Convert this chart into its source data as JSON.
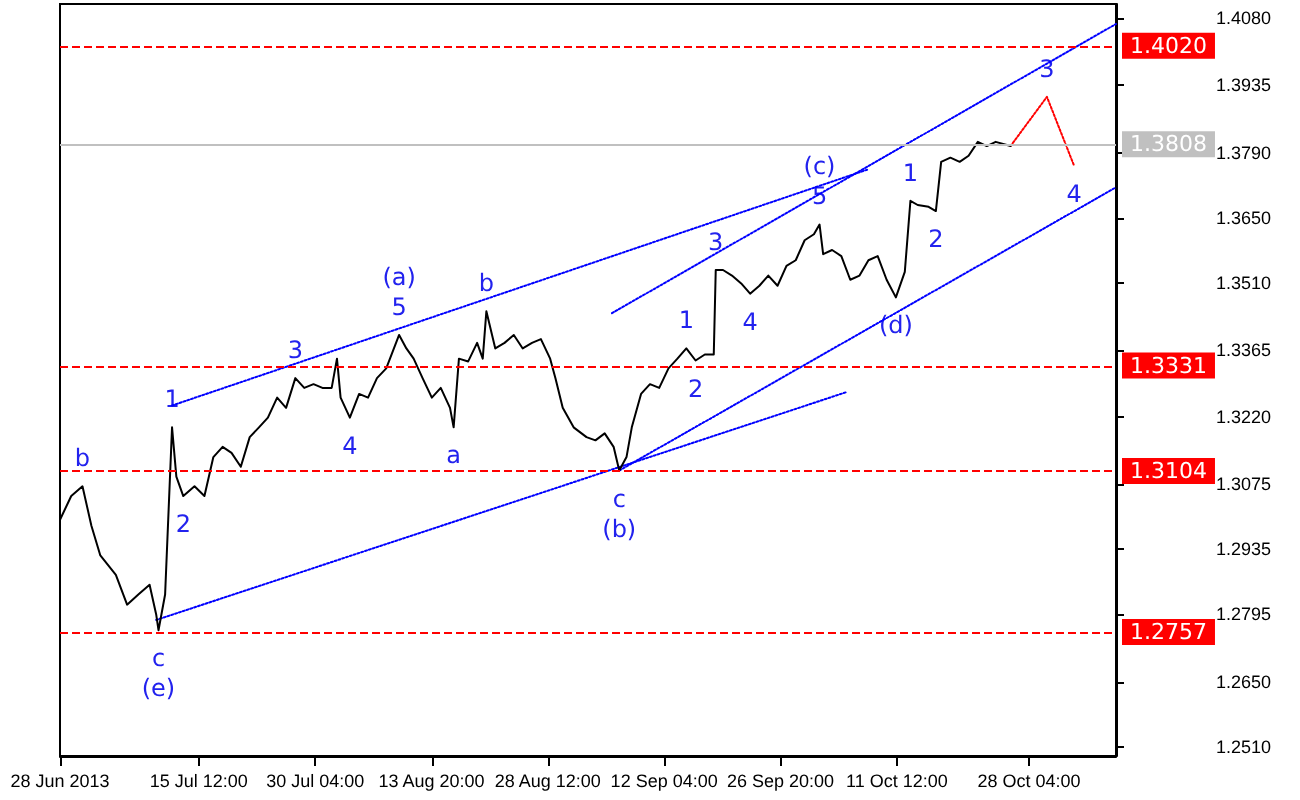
{
  "chart_data": {
    "type": "line",
    "series": [
      {
        "color": "#000000",
        "x": [
          "2013-06-28T00:00",
          "2013-06-29T10:00",
          "2013-06-30T20:00",
          "2013-07-01T23:00",
          "2013-07-03T02:00",
          "2013-07-05T01:00",
          "2013-07-06T11:00",
          "2013-07-07T21:00",
          "2013-07-09T07:00",
          "2013-07-10T03:00",
          "2013-07-10T10:00",
          "2013-07-11T06:00",
          "2013-07-12T03:00",
          "2013-07-12T16:00",
          "2013-07-13T13:00",
          "2013-07-14T23:00",
          "2013-07-16T05:00",
          "2013-07-17T08:00",
          "2013-07-18T12:00",
          "2013-07-19T15:00",
          "2013-07-20T19:00",
          "2013-07-21T22:00",
          "2013-07-23T02:00",
          "2013-07-24T05:00",
          "2013-07-25T09:00",
          "2013-07-26T12:00",
          "2013-07-27T16:00",
          "2013-07-28T19:00",
          "2013-07-29T23:00",
          "2013-07-31T02:00",
          "2013-08-01T06:00",
          "2013-08-01T22:00",
          "2013-08-02T09:00",
          "2013-08-03T13:00",
          "2013-08-04T17:00",
          "2013-08-05T20:00",
          "2013-08-06T23:00",
          "2013-08-08T03:00",
          "2013-08-09T18:00",
          "2013-08-10T16:00",
          "2013-08-11T14:00",
          "2013-08-12T17:00",
          "2013-08-13T21:00",
          "2013-08-15T00:00",
          "2013-08-16T04:00",
          "2013-08-16T15:00",
          "2013-08-17T07:00",
          "2013-08-18T11:00",
          "2013-08-19T14:00",
          "2013-08-20T07:00",
          "2013-08-20T18:00",
          "2013-08-21T21:00",
          "2013-08-23T01:00",
          "2013-08-24T05:00",
          "2013-08-25T08:00",
          "2013-08-26T12:00",
          "2013-08-27T15:00",
          "2013-08-28T19:00",
          "2013-08-29T11:00",
          "2013-08-30T09:00",
          "2013-08-31T18:00",
          "2013-09-02T09:00",
          "2013-09-03T12:00",
          "2013-09-04T16:00",
          "2013-09-05T19:00",
          "2013-09-06T12:00",
          "2013-09-07T10:00",
          "2013-09-08T02:00",
          "2013-09-09T06:00",
          "2013-09-10T09:00",
          "2013-09-11T13:00",
          "2013-09-12T17:00",
          "2013-09-13T20:00",
          "2013-09-14T23:00",
          "2013-09-16T03:00",
          "2013-09-17T07:00",
          "2013-09-18T10:00",
          "2013-09-18T16:00",
          "2013-09-19T14:00",
          "2013-09-20T17:00",
          "2013-09-21T21:00",
          "2013-09-23T00:00",
          "2013-09-24T04:00",
          "2013-09-25T07:00",
          "2013-09-26T11:00",
          "2013-09-27T14:00",
          "2013-09-28T18:00",
          "2013-09-29T21:00",
          "2013-10-01T01:00",
          "2013-10-01T18:00",
          "2013-10-02T05:00",
          "2013-10-03T08:00",
          "2013-10-04T12:00",
          "2013-10-05T15:00",
          "2013-10-06T19:00",
          "2013-10-07T22:00",
          "2013-10-09T02:00",
          "2013-10-10T05:00",
          "2013-10-11T09:00",
          "2013-10-12T12:00",
          "2013-10-13T05:00",
          "2013-10-14T03:00",
          "2013-10-15T12:00",
          "2013-10-16T10:00",
          "2013-10-17T02:00",
          "2013-10-18T06:00",
          "2013-10-19T10:00",
          "2013-10-20T13:00",
          "2013-10-21T17:00",
          "2013-10-22T20:00",
          "2013-10-23T23:00",
          "2013-10-25T20:00"
        ],
        "values": [
          1.2999,
          1.305,
          1.3071,
          1.2986,
          1.2922,
          1.288,
          1.2816,
          1.2838,
          1.2859,
          1.2795,
          1.2761,
          1.2838,
          1.3198,
          1.3092,
          1.305,
          1.3071,
          1.305,
          1.3134,
          1.3156,
          1.3143,
          1.3113,
          1.3177,
          1.3198,
          1.3219,
          1.3262,
          1.324,
          1.3304,
          1.3283,
          1.3291,
          1.3283,
          1.3283,
          1.3346,
          1.3262,
          1.3219,
          1.327,
          1.3262,
          1.3304,
          1.3325,
          1.3397,
          1.3368,
          1.3346,
          1.3304,
          1.3262,
          1.3283,
          1.324,
          1.3198,
          1.3346,
          1.334,
          1.338,
          1.3346,
          1.3448,
          1.3368,
          1.338,
          1.3397,
          1.3368,
          1.338,
          1.3388,
          1.3346,
          1.3304,
          1.324,
          1.3198,
          1.3177,
          1.317,
          1.3185,
          1.3156,
          1.3105,
          1.3134,
          1.3198,
          1.327,
          1.3291,
          1.3283,
          1.3325,
          1.3346,
          1.3368,
          1.3342,
          1.3355,
          1.3355,
          1.3537,
          1.3537,
          1.3525,
          1.3508,
          1.3486,
          1.3503,
          1.3525,
          1.3503,
          1.3546,
          1.3558,
          1.3601,
          1.3614,
          1.3635,
          1.3571,
          1.358,
          1.3567,
          1.3516,
          1.3525,
          1.3558,
          1.3567,
          1.3516,
          1.3478,
          1.3533,
          1.3686,
          1.3677,
          1.3673,
          1.3664,
          1.377,
          1.3779,
          1.377,
          1.3783,
          1.3813,
          1.3804,
          1.3813,
          1.3804
        ]
      },
      {
        "color": "#0000ff",
        "line_style": "dotted",
        "x": [
          "2013-07-10T03:00",
          "2013-10-05T04:00"
        ],
        "values": [
          1.2783,
          1.3274
        ]
      },
      {
        "color": "#0000ff",
        "line_style": "dotted",
        "x": [
          "2013-09-06T12:00",
          "2013-11-08T03:00"
        ],
        "values": [
          1.3105,
          1.3715
        ]
      },
      {
        "color": "#0000ff",
        "line_style": "dotted",
        "x": [
          "2013-07-12T03:00",
          "2013-10-07T22:00"
        ],
        "values": [
          1.3245,
          1.3754
        ]
      },
      {
        "color": "#0000ff",
        "line_style": "dotted",
        "x": [
          "2013-09-05T14:00",
          "2013-11-08T03:00"
        ],
        "values": [
          1.3444,
          1.4067
        ]
      },
      {
        "color": "#ff0000",
        "line_style": "dotted",
        "x": [
          "2013-10-25T20:00",
          "2013-10-30T10:00",
          "2013-11-02T20:00"
        ],
        "values": [
          1.3804,
          1.391,
          1.3762
        ]
      }
    ],
    "xlim": [
      "2013-06-28T00:00",
      "2013-11-08T03:00"
    ],
    "xticks": [
      {
        "value": "2013-06-28T00:00",
        "label": "28 Jun 2013"
      },
      {
        "value": "2013-07-15T12:00",
        "label": "15 Jul 12:00"
      },
      {
        "value": "2013-07-30T04:00",
        "label": "30 Jul 04:00"
      },
      {
        "value": "2013-08-13T20:00",
        "label": "13 Aug 20:00"
      },
      {
        "value": "2013-08-28T12:00",
        "label": "28 Aug 12:00"
      },
      {
        "value": "2013-09-12T04:00",
        "label": "12 Sep 04:00"
      },
      {
        "value": "2013-09-26T20:00",
        "label": "26 Sep 20:00"
      },
      {
        "value": "2013-10-11T12:00",
        "label": "11 Oct 12:00"
      },
      {
        "value": "2013-10-28T04:00",
        "label": "28 Oct 04:00"
      }
    ],
    "ylim": [
      1.249,
      1.411
    ],
    "yticks": [
      {
        "value": 1.251,
        "label": "1.2510"
      },
      {
        "value": 1.265,
        "label": "1.2650"
      },
      {
        "value": 1.2795,
        "label": "1.2795"
      },
      {
        "value": 1.2935,
        "label": "1.2935"
      },
      {
        "value": 1.3075,
        "label": "1.3075"
      },
      {
        "value": 1.322,
        "label": "1.3220"
      },
      {
        "value": 1.3365,
        "label": "1.3365"
      },
      {
        "value": 1.351,
        "label": "1.3510"
      },
      {
        "value": 1.365,
        "label": "1.3650"
      },
      {
        "value": 1.379,
        "label": "1.3790"
      },
      {
        "value": 1.3935,
        "label": "1.3935"
      },
      {
        "value": 1.408,
        "label": "1.4080"
      }
    ],
    "ref_lines": [
      {
        "axis": "y",
        "value": 1.402,
        "label": "1.4020",
        "color": "#ff0000",
        "line_style": "dashed"
      },
      {
        "axis": "y",
        "value": 1.3808,
        "label": "1.3808",
        "color": "#c0c0c0",
        "line_style": "solid"
      },
      {
        "axis": "y",
        "value": 1.3331,
        "label": "1.3331",
        "color": "#ff0000",
        "line_style": "dashed"
      },
      {
        "axis": "y",
        "value": 1.3104,
        "label": "1.3104",
        "color": "#ff0000",
        "line_style": "dashed"
      },
      {
        "axis": "y",
        "value": 1.2757,
        "label": "1.2757",
        "color": "#ff0000",
        "line_style": "dashed"
      }
    ],
    "annotations": [
      {
        "text": "b",
        "x": "2013-06-30T20:00",
        "y": 1.3071
      },
      {
        "text": "1",
        "x": "2013-07-12T03:00",
        "y": 1.3198
      },
      {
        "text": "2",
        "x": "2013-07-13T13:00",
        "y": 1.305
      },
      {
        "text": "c",
        "x": "2013-07-10T10:00",
        "y": 1.2761
      },
      {
        "text": "(e)",
        "x": "2013-07-10T10:00",
        "y": 1.2761
      },
      {
        "text": "3",
        "x": "2013-07-27T16:00",
        "y": 1.3304
      },
      {
        "text": "4",
        "x": "2013-08-03T13:00",
        "y": 1.3219
      },
      {
        "text": "5",
        "x": "2013-08-09T18:00",
        "y": 1.3397
      },
      {
        "text": "(a)",
        "x": "2013-08-09T18:00",
        "y": 1.3397
      },
      {
        "text": "a",
        "x": "2013-08-16T15:00",
        "y": 1.3198
      },
      {
        "text": "b",
        "x": "2013-08-20T18:00",
        "y": 1.3448
      },
      {
        "text": "1",
        "x": "2013-09-14T23:00",
        "y": 1.3368
      },
      {
        "text": "2",
        "x": "2013-09-16T03:00",
        "y": 1.3342
      },
      {
        "text": "c",
        "x": "2013-09-06T12:00",
        "y": 1.3105
      },
      {
        "text": "(b)",
        "x": "2013-09-06T12:00",
        "y": 1.3105
      },
      {
        "text": "3",
        "x": "2013-09-18T16:00",
        "y": 1.3537
      },
      {
        "text": "4",
        "x": "2013-09-23T00:00",
        "y": 1.3486
      },
      {
        "text": "5",
        "x": "2013-10-01T18:00",
        "y": 1.3635
      },
      {
        "text": "(c)",
        "x": "2013-10-01T18:00",
        "y": 1.3635
      },
      {
        "text": "1",
        "x": "2013-10-13T05:00",
        "y": 1.3686
      },
      {
        "text": "2",
        "x": "2013-10-16T10:00",
        "y": 1.3664
      },
      {
        "text": "(d)",
        "x": "2013-10-11T09:00",
        "y": 1.3478
      },
      {
        "text": "3",
        "x": "2013-10-30T10:00",
        "y": 1.391
      },
      {
        "text": "4",
        "x": "2013-11-02T20:00",
        "y": 1.3762
      }
    ],
    "marker": "none"
  }
}
